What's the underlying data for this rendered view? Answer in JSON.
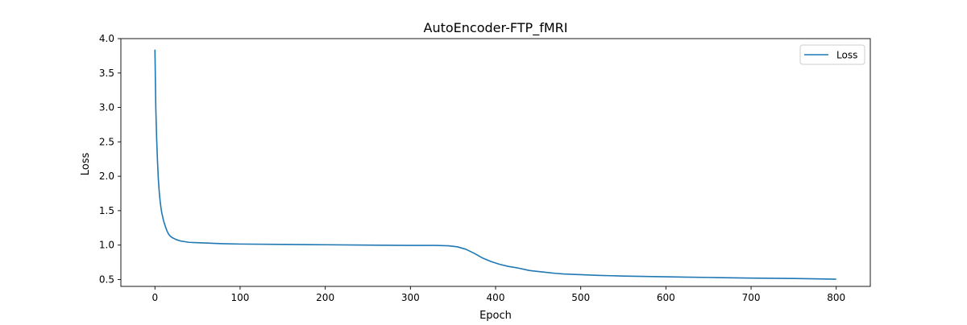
{
  "chart_data": {
    "type": "line",
    "title": "AutoEncoder-FTP_fMRI",
    "xlabel": "Epoch",
    "ylabel": "Loss",
    "xlim": [
      -40,
      840
    ],
    "ylim": [
      0.4,
      4.0
    ],
    "xticks": [
      0,
      100,
      200,
      300,
      400,
      500,
      600,
      700,
      800
    ],
    "yticks": [
      0.5,
      1.0,
      1.5,
      2.0,
      2.5,
      3.0,
      3.5,
      4.0
    ],
    "legend_position": "top-right",
    "grid": false,
    "series": [
      {
        "name": "Loss",
        "color": "#1f77b4",
        "points": [
          [
            0,
            3.84
          ],
          [
            1,
            3.0
          ],
          [
            2,
            2.55
          ],
          [
            3,
            2.22
          ],
          [
            4,
            1.96
          ],
          [
            5,
            1.78
          ],
          [
            6,
            1.65
          ],
          [
            7,
            1.55
          ],
          [
            8,
            1.47
          ],
          [
            10,
            1.36
          ],
          [
            12,
            1.28
          ],
          [
            14,
            1.21
          ],
          [
            16,
            1.16
          ],
          [
            18,
            1.13
          ],
          [
            20,
            1.11
          ],
          [
            25,
            1.08
          ],
          [
            30,
            1.06
          ],
          [
            35,
            1.05
          ],
          [
            40,
            1.04
          ],
          [
            50,
            1.035
          ],
          [
            60,
            1.03
          ],
          [
            70,
            1.025
          ],
          [
            80,
            1.02
          ],
          [
            100,
            1.015
          ],
          [
            150,
            1.01
          ],
          [
            200,
            1.005
          ],
          [
            250,
            1.0
          ],
          [
            300,
            0.995
          ],
          [
            330,
            0.995
          ],
          [
            345,
            0.99
          ],
          [
            355,
            0.975
          ],
          [
            365,
            0.94
          ],
          [
            375,
            0.88
          ],
          [
            385,
            0.81
          ],
          [
            395,
            0.76
          ],
          [
            405,
            0.72
          ],
          [
            415,
            0.69
          ],
          [
            425,
            0.67
          ],
          [
            440,
            0.63
          ],
          [
            455,
            0.61
          ],
          [
            470,
            0.59
          ],
          [
            480,
            0.58
          ],
          [
            500,
            0.57
          ],
          [
            520,
            0.56
          ],
          [
            550,
            0.55
          ],
          [
            600,
            0.54
          ],
          [
            620,
            0.535
          ],
          [
            650,
            0.53
          ],
          [
            700,
            0.52
          ],
          [
            750,
            0.515
          ],
          [
            800,
            0.505
          ]
        ]
      }
    ]
  }
}
